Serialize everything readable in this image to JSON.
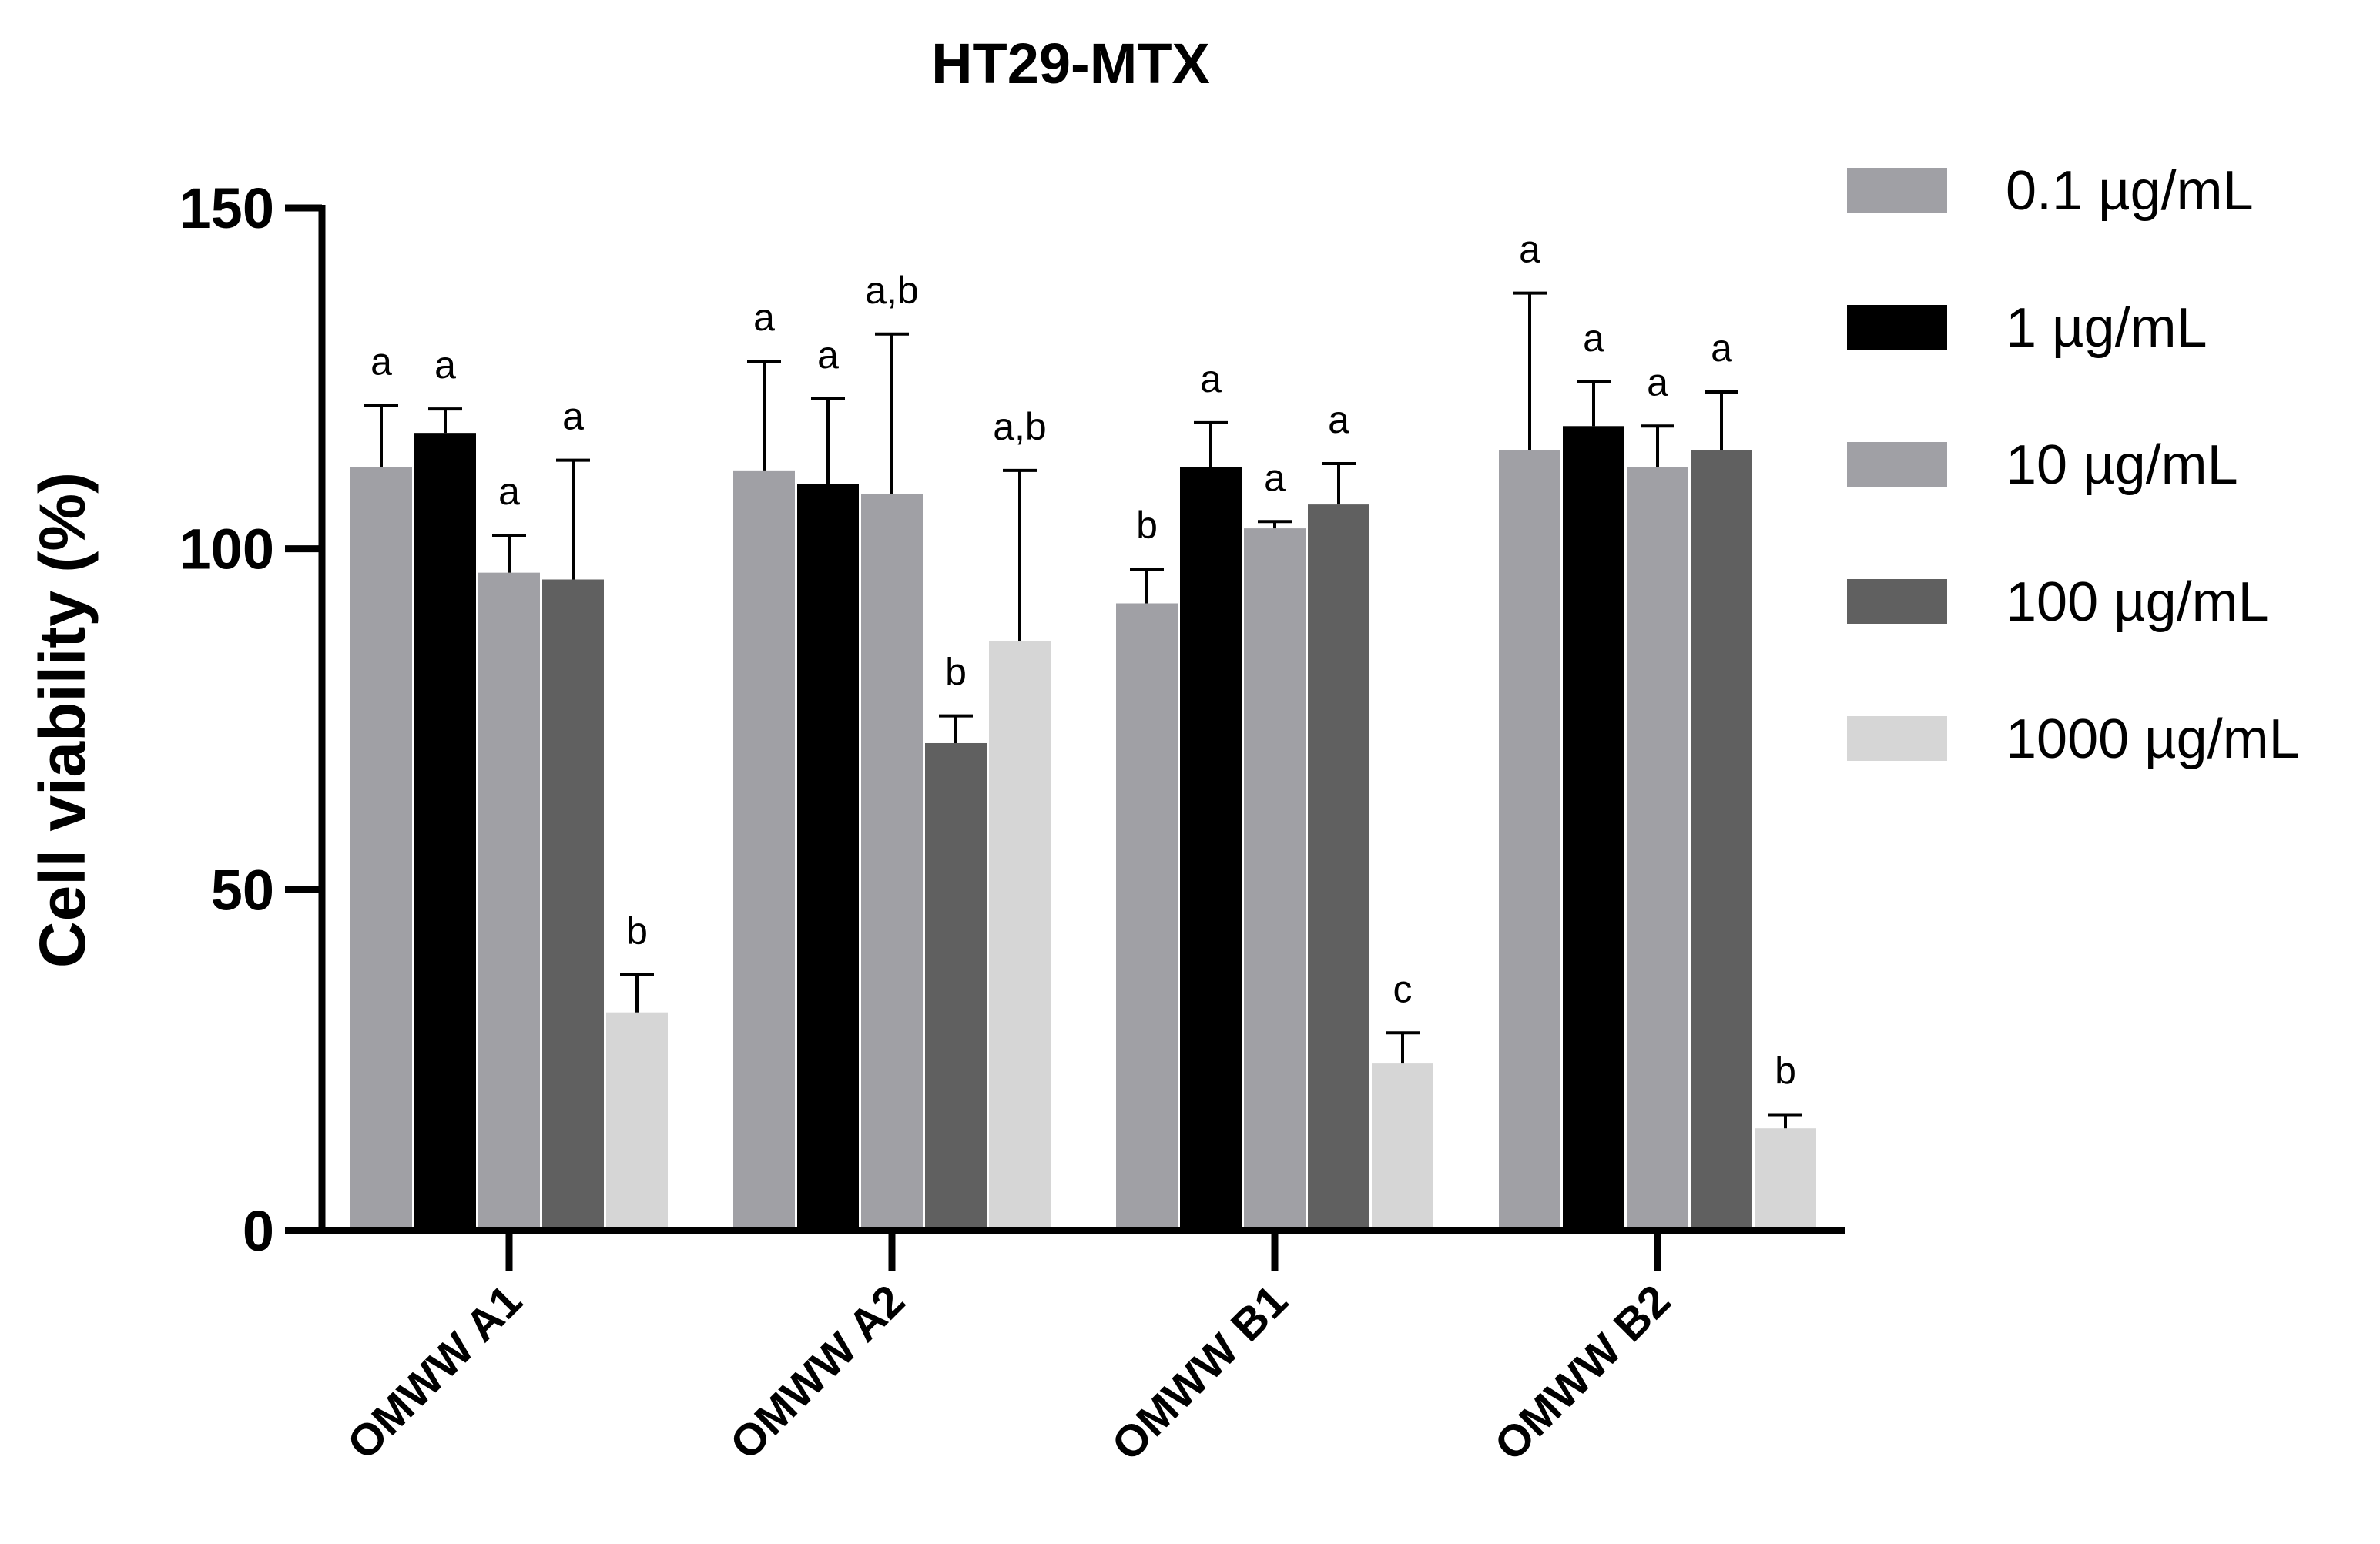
{
  "chart_data": {
    "type": "bar",
    "title": "HT29-MTX",
    "xlabel": "",
    "ylabel": "Cell viability (%)",
    "ylim": [
      0,
      150
    ],
    "yticks": [
      0,
      50,
      100,
      150
    ],
    "categories": [
      "OMWW A1",
      "OMWW A2",
      "OMWW B1",
      "OMWW B2"
    ],
    "legend_position": "right",
    "series": [
      {
        "name": "0.1 µg/mL",
        "color": "#a0a0a5",
        "values": [
          112,
          111.5,
          92,
          114.5
        ],
        "errors": [
          9,
          16,
          5,
          23
        ],
        "labels": [
          "a",
          "a",
          "b",
          "a"
        ]
      },
      {
        "name": "1 µg/mL",
        "color": "#000000",
        "values": [
          117,
          109.5,
          112,
          118
        ],
        "errors": [
          3.5,
          12.5,
          6.5,
          6.5
        ],
        "labels": [
          "a",
          "a",
          "a",
          "a"
        ]
      },
      {
        "name": "10 µg/mL",
        "color": "#a0a0a5",
        "values": [
          96.5,
          108,
          103,
          112
        ],
        "errors": [
          5.5,
          23.5,
          1,
          6
        ],
        "labels": [
          "a",
          "a,b",
          "a",
          "a"
        ]
      },
      {
        "name": "100 µg/mL",
        "color": "#606060",
        "values": [
          95.5,
          71.5,
          106.5,
          114.5
        ],
        "errors": [
          17.5,
          4,
          6,
          8.5
        ],
        "labels": [
          "a",
          "b",
          "a",
          "a"
        ]
      },
      {
        "name": "1000 µg/mL",
        "color": "#d6d6d6",
        "values": [
          32,
          86.5,
          24.5,
          15
        ],
        "errors": [
          5.5,
          25,
          4.5,
          2
        ],
        "labels": [
          "b",
          "a,b",
          "c",
          "b"
        ]
      }
    ]
  }
}
